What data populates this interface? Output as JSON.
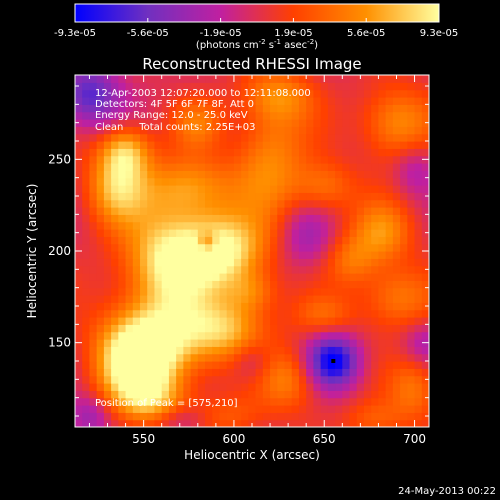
{
  "chart_data": {
    "type": "heatmap",
    "title": "Reconstructed RHESSI Image",
    "colorbar": {
      "tick_labels": [
        "-9.3e-05",
        "-5.6e-05",
        "-1.9e-05",
        "1.9e-05",
        "5.6e-05",
        "9.3e-05"
      ],
      "min": -9.3e-05,
      "max": 9.3e-05,
      "unit_prefix": "(photons cm",
      "unit_exp1": "-2",
      "unit_mid": " s",
      "unit_exp2": "-1",
      "unit_suffix": " asec",
      "unit_exp3": "-2",
      "unit_close": ")"
    },
    "xlabel": "Heliocentric X (arcsec)",
    "ylabel": "Heliocentric Y (arcsec)",
    "xlim": [
      512,
      708
    ],
    "ylim": [
      104,
      296
    ],
    "x_ticks": [
      550,
      600,
      650,
      700
    ],
    "y_ticks": [
      150,
      200,
      250
    ],
    "annotations": [
      "12-Apr-2003 12:07:20.000 to 12:11:08.000",
      "Detectors: 4F 5F 6F 7F 8F, Att 0",
      "Energy Range: 12.0 - 25.0 keV",
      "Clean     Total counts: 2.25E+03"
    ],
    "peak_label": "Position of Peak = [575,210]",
    "peak_position": [
      575,
      210
    ],
    "timestamp": "24-May-2013 00:22",
    "colors": [
      "#0000ff",
      "#7030c0",
      "#c020a0",
      "#ff4000",
      "#ff9000",
      "#ffffa0"
    ],
    "blobs": [
      {
        "x": 565,
        "y": 195,
        "value": 1.0,
        "sx": 18,
        "sy": 20
      },
      {
        "x": 595,
        "y": 200,
        "value": 0.9,
        "sx": 16,
        "sy": 14
      },
      {
        "x": 555,
        "y": 150,
        "value": 1.0,
        "sx": 20,
        "sy": 16
      },
      {
        "x": 545,
        "y": 135,
        "value": 0.75,
        "sx": 14,
        "sy": 14
      },
      {
        "x": 555,
        "y": 118,
        "value": 0.55,
        "sx": 14,
        "sy": 10
      },
      {
        "x": 595,
        "y": 158,
        "value": 0.7,
        "sx": 16,
        "sy": 12
      },
      {
        "x": 575,
        "y": 235,
        "value": 0.6,
        "sx": 18,
        "sy": 12
      },
      {
        "x": 535,
        "y": 235,
        "value": 0.7,
        "sx": 12,
        "sy": 14
      },
      {
        "x": 540,
        "y": 255,
        "value": 0.7,
        "sx": 10,
        "sy": 10
      },
      {
        "x": 620,
        "y": 250,
        "value": 0.55,
        "sx": 14,
        "sy": 24
      },
      {
        "x": 625,
        "y": 285,
        "value": 0.45,
        "sx": 14,
        "sy": 10
      },
      {
        "x": 690,
        "y": 270,
        "value": 0.6,
        "sx": 14,
        "sy": 14
      },
      {
        "x": 650,
        "y": 235,
        "value": 0.45,
        "sx": 12,
        "sy": 10
      },
      {
        "x": 682,
        "y": 210,
        "value": 0.55,
        "sx": 12,
        "sy": 12
      },
      {
        "x": 690,
        "y": 175,
        "value": 0.5,
        "sx": 14,
        "sy": 12
      },
      {
        "x": 665,
        "y": 195,
        "value": 0.4,
        "sx": 10,
        "sy": 10
      },
      {
        "x": 650,
        "y": 165,
        "value": 0.35,
        "sx": 12,
        "sy": 8
      },
      {
        "x": 630,
        "y": 130,
        "value": 0.5,
        "sx": 12,
        "sy": 12
      },
      {
        "x": 610,
        "y": 178,
        "value": 0.4,
        "sx": 10,
        "sy": 8
      },
      {
        "x": 580,
        "y": 270,
        "value": 0.4,
        "sx": 10,
        "sy": 10
      },
      {
        "x": 598,
        "y": 110,
        "value": 0.3,
        "sx": 14,
        "sy": 8
      },
      {
        "x": 700,
        "y": 125,
        "value": 0.45,
        "sx": 10,
        "sy": 12
      },
      {
        "x": 678,
        "y": 108,
        "value": 0.35,
        "sx": 12,
        "sy": 8
      },
      {
        "x": 655,
        "y": 140,
        "value": -1.0,
        "sx": 10,
        "sy": 10
      },
      {
        "x": 520,
        "y": 285,
        "value": -0.7,
        "sx": 12,
        "sy": 12
      },
      {
        "x": 585,
        "y": 205,
        "value": -0.5,
        "sx": 4,
        "sy": 4
      },
      {
        "x": 610,
        "y": 140,
        "value": -0.3,
        "sx": 8,
        "sy": 8
      },
      {
        "x": 640,
        "y": 208,
        "value": -0.35,
        "sx": 10,
        "sy": 12
      },
      {
        "x": 700,
        "y": 245,
        "value": -0.3,
        "sx": 8,
        "sy": 10
      },
      {
        "x": 520,
        "y": 110,
        "value": -0.4,
        "sx": 8,
        "sy": 8
      },
      {
        "x": 570,
        "y": 108,
        "value": -0.3,
        "sx": 10,
        "sy": 6
      },
      {
        "x": 705,
        "y": 150,
        "value": -0.3,
        "sx": 8,
        "sy": 8
      }
    ]
  }
}
